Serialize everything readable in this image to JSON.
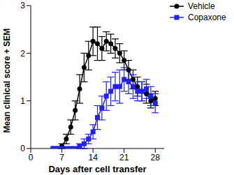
{
  "chart_data": {
    "type": "line",
    "x_label": "Days after cell transfer",
    "y_label": "Mean clinical score + SEM",
    "x": [
      5,
      6,
      7,
      8,
      9,
      10,
      11,
      12,
      13,
      14,
      15,
      16,
      17,
      18,
      19,
      20,
      21,
      22,
      23,
      24,
      25,
      26,
      27,
      28
    ],
    "xlim": [
      0,
      30
    ],
    "xticks": [
      0,
      7,
      14,
      21,
      28
    ],
    "ylim": [
      0,
      3
    ],
    "yticks": [
      0,
      1,
      2,
      3
    ],
    "legend": "top-right",
    "series": [
      {
        "name": "Vehicle",
        "color": "#000000",
        "marker": "circle",
        "values": [
          0,
          0,
          0.05,
          0.2,
          0.45,
          0.8,
          1.25,
          1.7,
          1.95,
          2.25,
          2.2,
          2.1,
          2.25,
          2.2,
          2.1,
          2.0,
          1.85,
          1.65,
          1.45,
          1.3,
          1.2,
          1.15,
          1.0,
          1.05
        ],
        "errors": [
          0,
          0,
          0.05,
          0.1,
          0.15,
          0.2,
          0.3,
          0.3,
          0.3,
          0.3,
          0.35,
          0.25,
          0.2,
          0.2,
          0.2,
          0.2,
          0.2,
          0.2,
          0.2,
          0.2,
          0.2,
          0.2,
          0.15,
          0.15
        ]
      },
      {
        "name": "Copaxone",
        "color": "#1f1fff",
        "marker": "square",
        "values": [
          0,
          0,
          0,
          0,
          0,
          0,
          0.05,
          0.1,
          0.2,
          0.35,
          0.65,
          0.85,
          1.1,
          1.2,
          1.3,
          1.3,
          1.45,
          1.4,
          1.3,
          1.2,
          1.2,
          1.25,
          1.1,
          0.95
        ],
        "errors": [
          0,
          0,
          0,
          0,
          0,
          0,
          0.05,
          0.1,
          0.1,
          0.15,
          0.25,
          0.25,
          0.3,
          0.3,
          0.3,
          0.35,
          0.25,
          0.25,
          0.25,
          0.2,
          0.2,
          0.2,
          0.2,
          0.2
        ]
      }
    ]
  }
}
